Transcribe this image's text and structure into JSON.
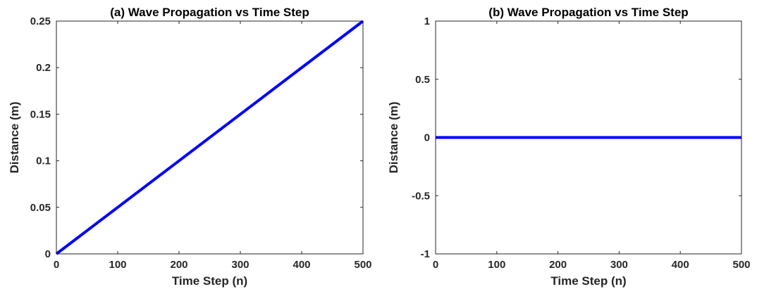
{
  "chart_data": [
    {
      "type": "line",
      "title": "(a) Wave Propagation vs Time Step",
      "xlabel": "Time Step (n)",
      "ylabel": "Distance (m)",
      "xlim": [
        0,
        500
      ],
      "ylim": [
        0,
        0.25
      ],
      "x_ticks": [
        0,
        100,
        200,
        300,
        400,
        500
      ],
      "x_tick_labels": [
        "0",
        "100",
        "200",
        "300",
        "400",
        "500"
      ],
      "y_ticks": [
        0,
        0.05,
        0.1,
        0.15,
        0.2,
        0.25
      ],
      "y_tick_labels": [
        "0",
        "0.05",
        "0.1",
        "0.15",
        "0.2",
        "0.25"
      ],
      "grid": false,
      "legend": "none",
      "series": [
        {
          "color": "#0000ff",
          "x": [
            0,
            500
          ],
          "y": [
            0,
            0.25
          ]
        }
      ]
    },
    {
      "type": "line",
      "title": "(b) Wave Propagation vs Time Step",
      "xlabel": "Time Step (n)",
      "ylabel": "Distance (m)",
      "xlim": [
        0,
        500
      ],
      "ylim": [
        -1,
        1
      ],
      "x_ticks": [
        0,
        100,
        200,
        300,
        400,
        500
      ],
      "x_tick_labels": [
        "0",
        "100",
        "200",
        "300",
        "400",
        "500"
      ],
      "y_ticks": [
        -1,
        -0.5,
        0,
        0.5,
        1
      ],
      "y_tick_labels": [
        "-1",
        "-0.5",
        "0",
        "0.5",
        "1"
      ],
      "grid": false,
      "legend": "none",
      "series": [
        {
          "color": "#0000ff",
          "x": [
            0,
            500
          ],
          "y": [
            0,
            0
          ]
        }
      ]
    }
  ]
}
